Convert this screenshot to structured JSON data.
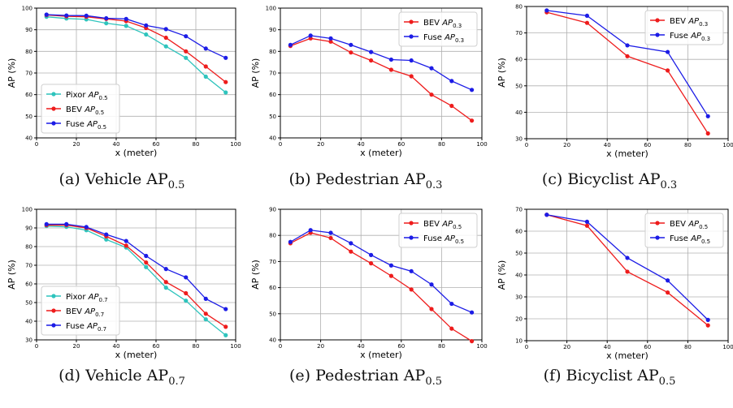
{
  "chart_data": [
    {
      "type": "line",
      "caption": "Vehicle AP",
      "caption_sub": "0.5",
      "xlabel": "x (meter)",
      "ylabel": "AP (%)",
      "xlim": [
        0,
        100
      ],
      "ylim": [
        40,
        100
      ],
      "xticks": [
        0,
        20,
        40,
        60,
        80,
        100
      ],
      "yticks": [
        40,
        50,
        60,
        70,
        80,
        90,
        100
      ],
      "grid": true,
      "legend": "lower-left",
      "series": [
        {
          "name": "Pixor AP",
          "sub": "0.5",
          "color": "#2ec4bd",
          "x": [
            5,
            15,
            25,
            35,
            45,
            55,
            65,
            75,
            85,
            95
          ],
          "y": [
            96,
            95.2,
            94.8,
            93,
            91.8,
            87.8,
            82.3,
            77,
            68.3,
            61
          ]
        },
        {
          "name": "BEV AP",
          "sub": "0.5",
          "color": "#ee1c1c",
          "x": [
            5,
            15,
            25,
            35,
            45,
            55,
            65,
            75,
            85,
            95
          ],
          "y": [
            96.8,
            96.2,
            96,
            95,
            94,
            90.8,
            86.3,
            80,
            73,
            65.8
          ]
        },
        {
          "name": "Fuse AP",
          "sub": "0.5",
          "color": "#1c1ce6",
          "x": [
            5,
            15,
            25,
            35,
            45,
            55,
            65,
            75,
            85,
            95
          ],
          "y": [
            97,
            96.6,
            96.5,
            95.3,
            95,
            92,
            90.3,
            87,
            81.3,
            77
          ]
        }
      ]
    },
    {
      "type": "line",
      "caption": "Pedestrian AP",
      "caption_sub": "0.3",
      "xlabel": "x (meter)",
      "ylabel": "AP (%)",
      "xlim": [
        0,
        100
      ],
      "ylim": [
        40,
        100
      ],
      "xticks": [
        0,
        20,
        40,
        60,
        80,
        100
      ],
      "yticks": [
        40,
        50,
        60,
        70,
        80,
        90,
        100
      ],
      "grid": true,
      "legend": "upper-right",
      "series": [
        {
          "name": "BEV AP",
          "sub": "0.3",
          "color": "#ee1c1c",
          "x": [
            5,
            15,
            25,
            35,
            45,
            55,
            65,
            75,
            85,
            95
          ],
          "y": [
            82.5,
            86,
            84.5,
            79.5,
            75.8,
            71.5,
            68.5,
            60,
            54.8,
            48
          ]
        },
        {
          "name": "Fuse AP",
          "sub": "0.3",
          "color": "#1c1ce6",
          "x": [
            5,
            15,
            25,
            35,
            45,
            55,
            65,
            75,
            85,
            95
          ],
          "y": [
            83,
            87.3,
            86,
            83,
            79.7,
            76.2,
            75.8,
            72.2,
            66.3,
            62.2
          ]
        }
      ]
    },
    {
      "type": "line",
      "caption": "Bicyclist AP",
      "caption_sub": "0.3",
      "xlabel": "x (meter)",
      "ylabel": "AP (%)",
      "xlim": [
        0,
        100
      ],
      "ylim": [
        30,
        80
      ],
      "xticks": [
        0,
        20,
        40,
        60,
        80,
        100
      ],
      "yticks": [
        30,
        40,
        50,
        60,
        70,
        80
      ],
      "grid": true,
      "legend": "upper-right",
      "series": [
        {
          "name": "BEV AP",
          "sub": "0.3",
          "color": "#ee1c1c",
          "x": [
            10,
            30,
            50,
            70,
            90
          ],
          "y": [
            77.8,
            73.8,
            61.2,
            55.8,
            32
          ]
        },
        {
          "name": "Fuse AP",
          "sub": "0.3",
          "color": "#1c1ce6",
          "x": [
            10,
            30,
            50,
            70,
            90
          ],
          "y": [
            78.5,
            76.5,
            65.3,
            62.8,
            38.5
          ]
        }
      ]
    },
    {
      "type": "line",
      "caption": "Vehicle AP",
      "caption_sub": "0.7",
      "xlabel": "x (meter)",
      "ylabel": "AP (%)",
      "xlim": [
        0,
        100
      ],
      "ylim": [
        30,
        100
      ],
      "xticks": [
        0,
        20,
        40,
        60,
        80,
        100
      ],
      "yticks": [
        30,
        40,
        50,
        60,
        70,
        80,
        90,
        100
      ],
      "grid": true,
      "legend": "lower-left",
      "series": [
        {
          "name": "Pixor AP",
          "sub": "0.7",
          "color": "#2ec4bd",
          "x": [
            5,
            15,
            25,
            35,
            45,
            55,
            65,
            75,
            85,
            95
          ],
          "y": [
            91,
            90.6,
            88.8,
            83.8,
            79.5,
            69,
            58,
            51,
            41,
            32.5
          ]
        },
        {
          "name": "BEV AP",
          "sub": "0.7",
          "color": "#ee1c1c",
          "x": [
            5,
            15,
            25,
            35,
            45,
            55,
            65,
            75,
            85,
            95
          ],
          "y": [
            91.5,
            91.5,
            90,
            85.5,
            80.5,
            71.5,
            61,
            55,
            44,
            37
          ]
        },
        {
          "name": "Fuse AP",
          "sub": "0.7",
          "color": "#1c1ce6",
          "x": [
            5,
            15,
            25,
            35,
            45,
            55,
            65,
            75,
            85,
            95
          ],
          "y": [
            92,
            92,
            90.5,
            86.5,
            83,
            75,
            68,
            63.5,
            52,
            46.5
          ]
        }
      ]
    },
    {
      "type": "line",
      "caption": "Pedestrian AP",
      "caption_sub": "0.5",
      "xlabel": "x (meter)",
      "ylabel": "AP (%)",
      "xlim": [
        0,
        100
      ],
      "ylim": [
        40,
        90
      ],
      "xticks": [
        0,
        20,
        40,
        60,
        80,
        100
      ],
      "yticks": [
        40,
        50,
        60,
        70,
        80,
        90
      ],
      "grid": true,
      "legend": "upper-right",
      "series": [
        {
          "name": "BEV AP",
          "sub": "0.5",
          "color": "#ee1c1c",
          "x": [
            5,
            15,
            25,
            35,
            45,
            55,
            65,
            75,
            85,
            95
          ],
          "y": [
            77,
            81,
            79,
            73.8,
            69.3,
            64.5,
            59.3,
            51.8,
            44.3,
            39.5
          ]
        },
        {
          "name": "Fuse AP",
          "sub": "0.5",
          "color": "#1c1ce6",
          "x": [
            5,
            15,
            25,
            35,
            45,
            55,
            65,
            75,
            85,
            95
          ],
          "y": [
            77.5,
            82,
            81,
            77,
            72.5,
            68.5,
            66.3,
            61.2,
            53.8,
            50.5
          ]
        }
      ]
    },
    {
      "type": "line",
      "caption": "Bicyclist AP",
      "caption_sub": "0.5",
      "xlabel": "x (meter)",
      "ylabel": "AP (%)",
      "xlim": [
        0,
        100
      ],
      "ylim": [
        10,
        70
      ],
      "xticks": [
        0,
        20,
        40,
        60,
        80,
        100
      ],
      "yticks": [
        10,
        20,
        30,
        40,
        50,
        60,
        70
      ],
      "grid": true,
      "legend": "upper-right",
      "series": [
        {
          "name": "BEV AP",
          "sub": "0.5",
          "color": "#ee1c1c",
          "x": [
            10,
            30,
            50,
            70,
            90
          ],
          "y": [
            67.5,
            62.5,
            41.5,
            32,
            17
          ]
        },
        {
          "name": "Fuse AP",
          "sub": "0.5",
          "color": "#1c1ce6",
          "x": [
            10,
            30,
            50,
            70,
            90
          ],
          "y": [
            67.5,
            64.3,
            47.8,
            37.5,
            19.5
          ]
        }
      ]
    }
  ]
}
